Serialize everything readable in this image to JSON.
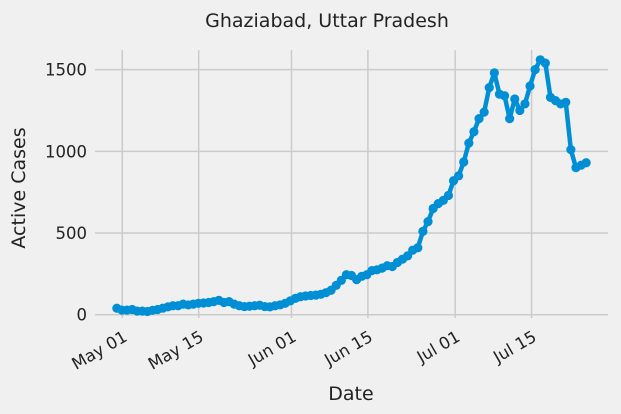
{
  "chart_data": {
    "type": "line",
    "title": "Ghaziabad, Uttar Pradesh",
    "xlabel": "Date",
    "ylabel": "Active Cases",
    "x_start": "2020-04-30",
    "x_end": "2020-07-25",
    "xlim": [
      "2020-04-26",
      "2020-07-29"
    ],
    "ylim": [
      -20,
      1620
    ],
    "grid": true,
    "color": "#008fd5",
    "x_ticks": [
      {
        "date": "2020-05-01",
        "label": "May 01"
      },
      {
        "date": "2020-05-15",
        "label": "May 15"
      },
      {
        "date": "2020-06-01",
        "label": "Jun 01"
      },
      {
        "date": "2020-06-15",
        "label": "Jun 15"
      },
      {
        "date": "2020-07-01",
        "label": "Jul 01"
      },
      {
        "date": "2020-07-15",
        "label": "Jul 15"
      }
    ],
    "y_ticks": [
      {
        "value": 0,
        "label": "0"
      },
      {
        "value": 500,
        "label": "500"
      },
      {
        "value": 1000,
        "label": "1000"
      },
      {
        "value": 1500,
        "label": "1500"
      }
    ],
    "series": [
      {
        "values": [
          40,
          28,
          28,
          32,
          22,
          22,
          20,
          27,
          32,
          40,
          48,
          55,
          55,
          65,
          60,
          65,
          70,
          72,
          75,
          80,
          88,
          75,
          80,
          65,
          55,
          50,
          52,
          55,
          58,
          50,
          48,
          55,
          60,
          70,
          85,
          100,
          110,
          115,
          118,
          120,
          125,
          135,
          150,
          180,
          210,
          245,
          240,
          215,
          235,
          245,
          270,
          275,
          285,
          300,
          295,
          320,
          340,
          360,
          395,
          410,
          510,
          570,
          650,
          680,
          700,
          730,
          820,
          850,
          935,
          1050,
          1120,
          1200,
          1240,
          1390,
          1480,
          1350,
          1340,
          1200,
          1320,
          1250,
          1290,
          1400,
          1500,
          1560,
          1540,
          1330,
          1310,
          1290,
          1300,
          1010,
          900,
          915,
          930
        ]
      }
    ]
  }
}
